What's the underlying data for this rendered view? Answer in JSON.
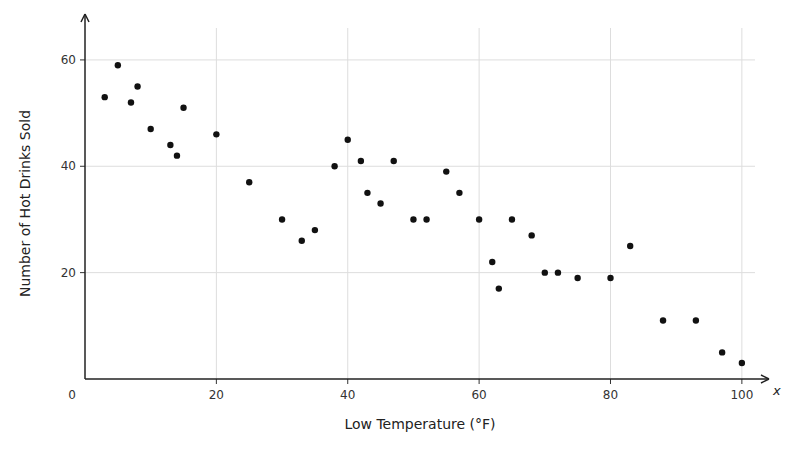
{
  "chart_data": {
    "type": "scatter",
    "x": [
      3,
      5,
      7,
      8,
      10,
      13,
      14,
      15,
      20,
      25,
      30,
      33,
      35,
      38,
      40,
      42,
      43,
      45,
      47,
      50,
      52,
      55,
      57,
      60,
      62,
      63,
      65,
      68,
      70,
      72,
      75,
      80,
      83,
      88,
      93,
      97,
      100
    ],
    "values": [
      53,
      59,
      52,
      55,
      47,
      44,
      42,
      51,
      46,
      37,
      30,
      26,
      28,
      40,
      45,
      41,
      35,
      33,
      41,
      30,
      30,
      39,
      35,
      30,
      22,
      17,
      30,
      27,
      20,
      20,
      19,
      19,
      25,
      11,
      11,
      5,
      3
    ],
    "xlabel": "Low Temperature (°F)",
    "ylabel": "Number of Hot Drinks Sold",
    "xlim": [
      0,
      102
    ],
    "ylim": [
      0,
      66
    ],
    "xticks": [
      20,
      40,
      60,
      80,
      100
    ],
    "yticks": [
      20,
      40,
      60
    ],
    "color": "#111111",
    "grid": true,
    "annotations": [
      {
        "text": "x"
      },
      {
        "text": "0"
      }
    ]
  }
}
